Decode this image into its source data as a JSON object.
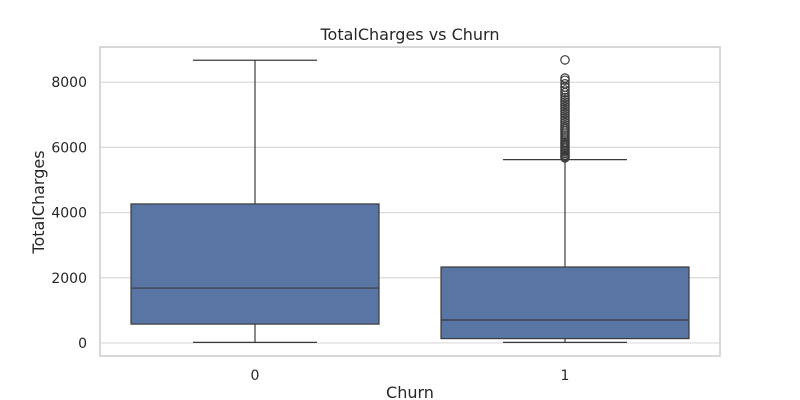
{
  "chart_data": {
    "type": "box",
    "title": "TotalCharges vs Churn",
    "xlabel": "Churn",
    "ylabel": "TotalCharges",
    "categories": [
      "0",
      "1"
    ],
    "ylim": [
      -400,
      9080
    ],
    "yticks": [
      0,
      2000,
      4000,
      6000,
      8000
    ],
    "grid": true,
    "colors": {
      "box_fill": "#5975a4",
      "line": "#3b3b3b",
      "grid": "#d9d9d9",
      "frame": "#cccccc"
    },
    "boxes": [
      {
        "category": "0",
        "whisker_low": 19,
        "q1": 578,
        "median": 1684,
        "q3": 4265,
        "whisker_high": 8673,
        "outliers": []
      },
      {
        "category": "1",
        "whisker_low": 19,
        "q1": 134,
        "median": 704,
        "q3": 2331,
        "whisker_high": 5624,
        "outliers": [
          5680,
          5720,
          5760,
          5810,
          5860,
          5900,
          5950,
          6000,
          6050,
          6100,
          6150,
          6200,
          6260,
          6320,
          6380,
          6440,
          6500,
          6560,
          6620,
          6690,
          6760,
          6830,
          6900,
          6970,
          7040,
          7110,
          7180,
          7250,
          7320,
          7390,
          7460,
          7530,
          7600,
          7680,
          7760,
          7850,
          7950,
          8060,
          8127,
          8684
        ]
      }
    ]
  }
}
